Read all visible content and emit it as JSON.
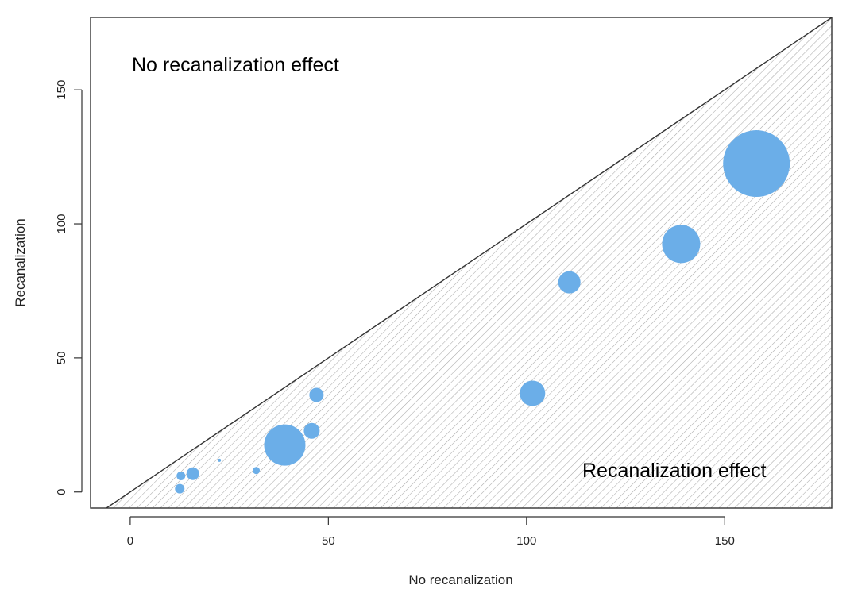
{
  "chart_data": {
    "type": "scatter",
    "title": "",
    "xlabel": "No recanalization",
    "ylabel": "Recanalization",
    "xlim": [
      -10,
      177
    ],
    "ylim": [
      -6,
      177
    ],
    "xticks": [
      0,
      50,
      100,
      150
    ],
    "yticks": [
      0,
      50,
      100,
      150
    ],
    "grid": false,
    "annotations": {
      "top_left": "No recanalization effect",
      "bottom_right": "Recanalization effect"
    },
    "reference_line": "y = x",
    "shaded_region": "below diagonal (hatched)",
    "point_color": "#6BAEE8",
    "points": [
      {
        "x": 12.5,
        "y": 1.2,
        "size": 6
      },
      {
        "x": 12.8,
        "y": 6.0,
        "size": 5.5
      },
      {
        "x": 15.8,
        "y": 6.8,
        "size": 8
      },
      {
        "x": 22.5,
        "y": 11.8,
        "size": 2
      },
      {
        "x": 31.8,
        "y": 8.0,
        "size": 4.5
      },
      {
        "x": 39.0,
        "y": 17.5,
        "size": 26
      },
      {
        "x": 45.8,
        "y": 22.8,
        "size": 10
      },
      {
        "x": 47.0,
        "y": 36.2,
        "size": 9
      },
      {
        "x": 101.5,
        "y": 36.8,
        "size": 16
      },
      {
        "x": 110.8,
        "y": 78.2,
        "size": 14
      },
      {
        "x": 139.0,
        "y": 92.5,
        "size": 24
      },
      {
        "x": 158.0,
        "y": 122.5,
        "size": 42
      }
    ]
  }
}
